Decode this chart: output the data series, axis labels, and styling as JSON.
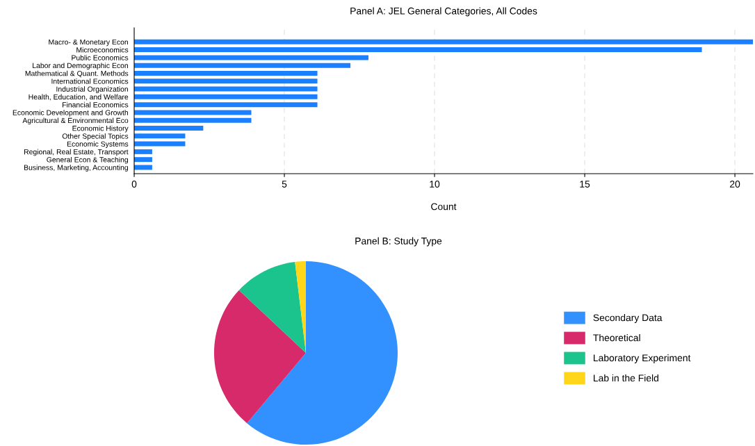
{
  "chart_data": [
    {
      "type": "bar",
      "orientation": "horizontal",
      "title": "Panel A: JEL General Categories, All Codes",
      "xlabel": "Count",
      "categories": [
        "Macro- & Monetary Econ",
        "Microeconomics",
        "Public Economics",
        "Labor and Demographic Econ",
        "Mathematical & Quant. Methods",
        "International Economics",
        "Industrial Organization",
        "Health, Education, and Welfare",
        "Financial Economics",
        "Economic Development and Growth",
        "Agricultural & Environmental Eco",
        "Economic History",
        "Other Special Topics",
        "Economic Systems",
        "Regional, Real Estate, Transport",
        "General Econ & Teaching",
        "Business, Marketing, Accounting"
      ],
      "values": [
        20.6,
        18.9,
        7.8,
        7.2,
        6.1,
        6.1,
        6.1,
        6.1,
        6.1,
        3.9,
        3.9,
        2.3,
        1.7,
        1.7,
        0.6,
        0.6,
        0.6
      ],
      "color": "#1a80ff",
      "xlim": [
        0,
        20.6
      ],
      "xticks": [
        0,
        5,
        10,
        15,
        20
      ],
      "grid": "x",
      "line_style": "dashed"
    },
    {
      "type": "pie",
      "title": "Panel B: Study Type",
      "categories": [
        "Secondary Data",
        "Theoretical",
        "Laboratory Experiment",
        "Lab in the Field"
      ],
      "values": [
        61.1,
        25.9,
        11.1,
        1.9
      ],
      "colors": [
        "#3291ff",
        "#d62a6a",
        "#1ac48c",
        "#ffd619"
      ],
      "legend": "right"
    }
  ]
}
